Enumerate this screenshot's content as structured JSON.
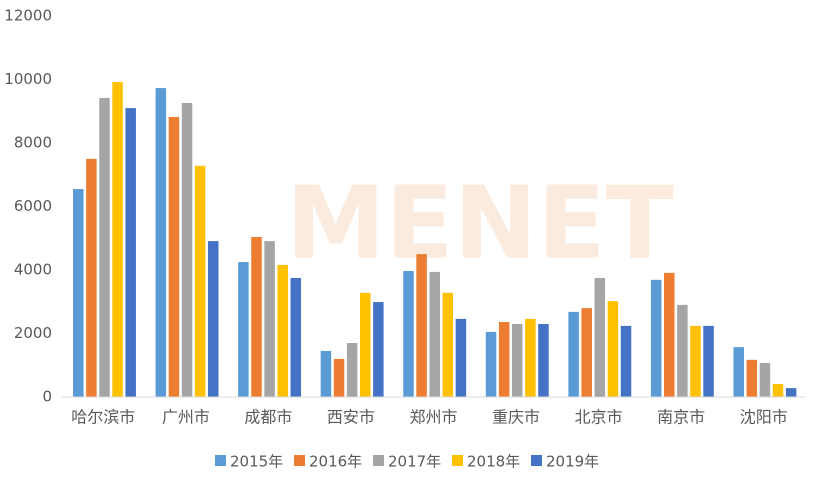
{
  "chart_data": {
    "type": "bar",
    "watermark": "MENET",
    "categories": [
      "哈尔滨市",
      "广州市",
      "成都市",
      "西安市",
      "郑州市",
      "重庆市",
      "北京市",
      "南京市",
      "沈阳市"
    ],
    "series": [
      {
        "name": "2015年",
        "color": "#5b9bd5",
        "values": [
          6550,
          9730,
          4250,
          1450,
          3970,
          2050,
          2680,
          3690,
          1570
        ]
      },
      {
        "name": "2016年",
        "color": "#ed7d31",
        "values": [
          7500,
          8820,
          5040,
          1200,
          4500,
          2360,
          2800,
          3910,
          1170
        ]
      },
      {
        "name": "2017年",
        "color": "#a5a5a5",
        "values": [
          9420,
          9260,
          4910,
          1700,
          3940,
          2300,
          3750,
          2900,
          1070
        ]
      },
      {
        "name": "2018年",
        "color": "#ffc000",
        "values": [
          9920,
          7280,
          4160,
          3280,
          3280,
          2460,
          3020,
          2240,
          410
        ]
      },
      {
        "name": "2019年",
        "color": "#4472c4",
        "values": [
          9100,
          4910,
          3750,
          2990,
          2460,
          2300,
          2240,
          2240,
          280
        ]
      }
    ],
    "ylim": [
      0,
      12000
    ],
    "yticks": [
      0,
      2000,
      4000,
      6000,
      8000,
      10000,
      12000
    ],
    "grid": false
  }
}
